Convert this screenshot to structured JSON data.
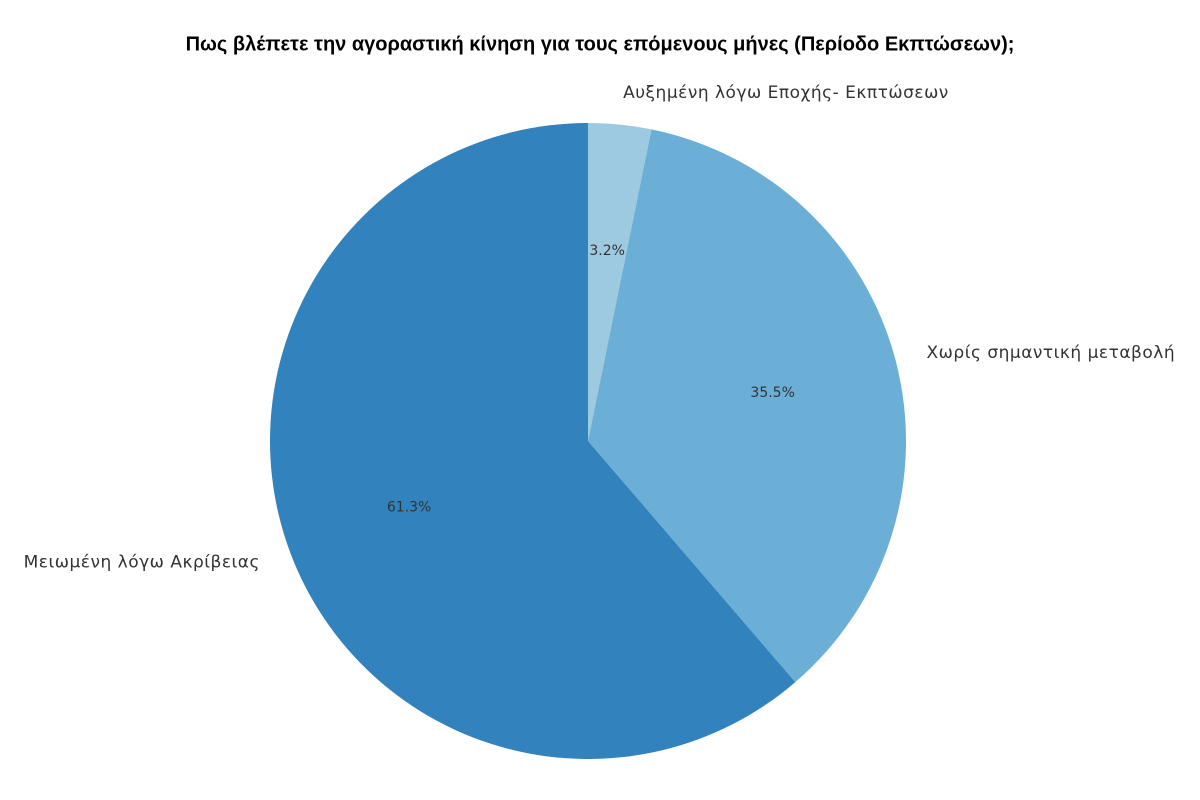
{
  "chart_data": {
    "type": "pie",
    "title": "Πως βλέπετε την αγοραστική κίνηση για τους επόμενους μήνες (Περίοδο Εκπτώσεων);",
    "categories": [
      "Αυξημένη λόγω Εποχής- Εκπτώσεων",
      "Χωρίς σημαντική μεταβολή",
      "Μειωμένη λόγω Ακρίβειας"
    ],
    "values": [
      3.2,
      35.5,
      61.3
    ],
    "value_labels": [
      "3.2%",
      "35.5%",
      "61.3%"
    ],
    "colors": [
      "#9ecae1",
      "#6baed6",
      "#3182bd"
    ]
  }
}
